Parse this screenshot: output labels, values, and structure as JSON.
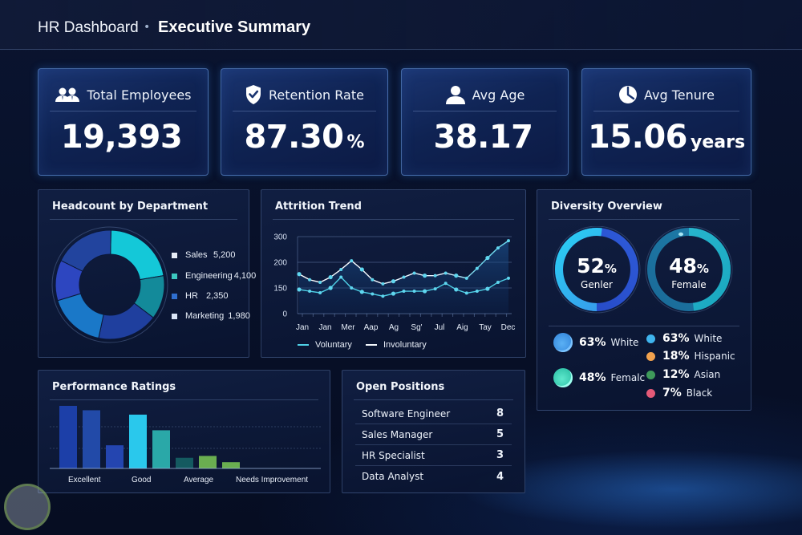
{
  "header": {
    "breadcrumb": "HR Dashboard",
    "separator": "•",
    "title": "Executive Summary"
  },
  "kpis": [
    {
      "icon": "users-icon",
      "label": "Total Employees",
      "value": "19,393",
      "suffix": ""
    },
    {
      "icon": "shield-check-icon",
      "label": "Retention Rate",
      "value": "87.30",
      "suffix": "%"
    },
    {
      "icon": "person-icon",
      "label": "Avg Age",
      "value": "38.17",
      "suffix": ""
    },
    {
      "icon": "clock-icon",
      "label": "Avg Tenure",
      "value": "15.06",
      "suffix": "years"
    }
  ],
  "headcount": {
    "title": "Headcount by Department",
    "items": [
      {
        "label": "Sales",
        "value": "5,200",
        "color": "#e6ecf7"
      },
      {
        "label": "Engineering",
        "value": "4,100",
        "color": "#3cc8c0"
      },
      {
        "label": "HR",
        "value": "2,350",
        "color": "#2f6fd0"
      },
      {
        "label": "Marketing",
        "value": "1,980",
        "color": "#dbe6f7"
      }
    ],
    "segments": [
      {
        "name": "teal-bright",
        "share": 0.22,
        "color": "#14c8d8"
      },
      {
        "name": "teal-dark",
        "share": 0.13,
        "color": "#138a9a"
      },
      {
        "name": "navy",
        "share": 0.18,
        "color": "#1f3f9e"
      },
      {
        "name": "azure",
        "share": 0.17,
        "color": "#1a78c8"
      },
      {
        "name": "indigo",
        "share": 0.12,
        "color": "#2d46c0"
      },
      {
        "name": "royal",
        "share": 0.18,
        "color": "#22449e"
      }
    ]
  },
  "attrition": {
    "title": "Attrition Trend",
    "legend": [
      {
        "label": "Voluntary",
        "color": "#4fd0e6"
      },
      {
        "label": "Involuntary",
        "color": "#f2f6fb"
      }
    ]
  },
  "chart_data": {
    "type": "line",
    "title": "Attrition Trend",
    "xlabel": "",
    "ylabel": "",
    "y_tick_labels": [
      "0",
      "150",
      "200",
      "300"
    ],
    "ylim": [
      0,
      300
    ],
    "grid": true,
    "legend_position": "bottom",
    "x_tick_labels": [
      "Jan",
      "Jan",
      "Mer",
      "Aap",
      "Ag",
      "Sg'",
      "Jul",
      "Aig",
      "Tay",
      "Dec"
    ],
    "series": [
      {
        "name": "Involuntary",
        "values": [
          177,
          166,
          161,
          171,
          186,
          206,
          186,
          166,
          158,
          163,
          171,
          179,
          174,
          174,
          179,
          174,
          169,
          188,
          217,
          256,
          284
        ]
      },
      {
        "name": "Voluntary",
        "values": [
          141,
          131,
          122,
          150,
          171,
          150,
          127,
          115,
          102,
          117,
          131,
          131,
          131,
          145,
          159,
          141,
          120,
          131,
          145,
          161,
          169
        ]
      }
    ]
  },
  "diversity": {
    "title": "Diversity Overview",
    "rings": [
      {
        "value": "52",
        "suffix": "%",
        "label": "Genler",
        "percent": 52
      },
      {
        "value": "48",
        "suffix": "%",
        "label": "Female",
        "percent": 48
      }
    ],
    "summary": [
      {
        "pct": "63%",
        "label": "White",
        "color": "#4aa3f0"
      },
      {
        "pct": "48%",
        "label": "Femalc",
        "color": "#3de0c0"
      }
    ],
    "breakdown": [
      {
        "pct": "63%",
        "label": "White",
        "color": "#3fb4ee"
      },
      {
        "pct": "18%",
        "label": "Hispanic",
        "color": "#f2a24e"
      },
      {
        "pct": "12%",
        "label": "Asian",
        "color": "#3e9a5a"
      },
      {
        "pct": "7%",
        "label": "Black",
        "color": "#e45a78"
      }
    ]
  },
  "performance": {
    "title": "Performance Ratings",
    "categories": [
      "Excellent",
      "Good",
      "Average",
      "Needs Improvement"
    ],
    "bars": [
      {
        "value": 100,
        "color": "#1c3fa8"
      },
      {
        "value": 93,
        "color": "#224aa8"
      },
      {
        "value": 37,
        "color": "#2445b0"
      },
      {
        "value": 86,
        "color": "#2ac8ec"
      },
      {
        "value": 61,
        "color": "#2aa8a8"
      },
      {
        "value": 17,
        "color": "#145a60"
      },
      {
        "value": 20,
        "color": "#6aae50"
      },
      {
        "value": 10,
        "color": "#6aae50"
      }
    ]
  },
  "open_positions": {
    "title": "Open Positions",
    "rows": [
      {
        "role": "Software Engineer",
        "count": "8"
      },
      {
        "role": "Sales Manager",
        "count": "5"
      },
      {
        "role": "HR Specialist",
        "count": "3"
      },
      {
        "role": "Data Analyst",
        "count": "4"
      }
    ]
  }
}
